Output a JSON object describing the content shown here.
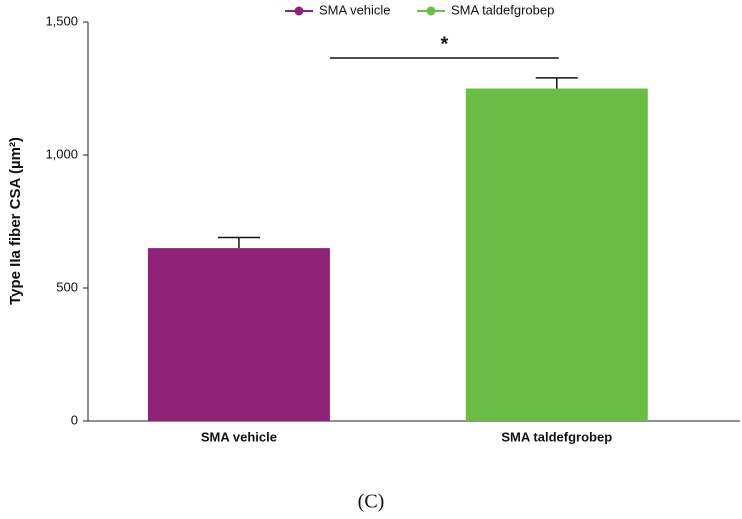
{
  "chart_data": {
    "type": "bar",
    "ylabel": "Type IIa fiber CSA (µm²)",
    "categories": [
      "SMA vehicle",
      "SMA taldefgrobep"
    ],
    "values": [
      650,
      1250
    ],
    "errors": [
      40,
      40
    ],
    "colors": [
      "#8e2378",
      "#6cbd45"
    ],
    "ylim": [
      0,
      1500
    ],
    "yticks": [
      0,
      500,
      {
        "value": 1000,
        "label": "1,000"
      },
      {
        "value": 1500,
        "label": "1,500"
      }
    ],
    "significance": "*",
    "legend": "top",
    "caption": "(C)"
  }
}
